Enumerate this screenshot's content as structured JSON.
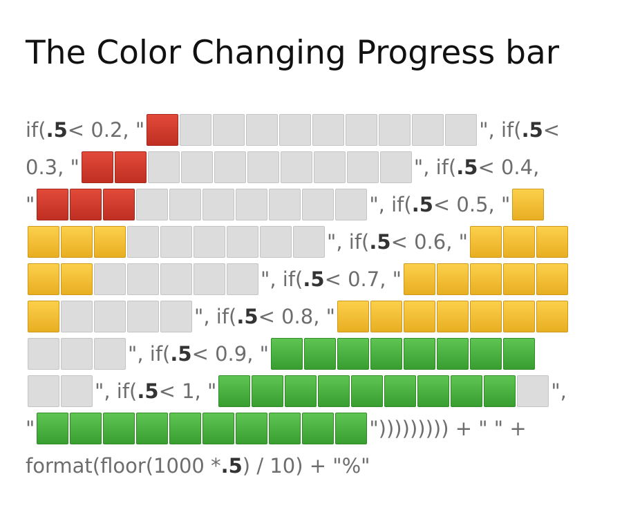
{
  "title": "The Color Changing Progress bar",
  "colors": {
    "red": "#cf3a2c",
    "yellow": "#f4c030",
    "green": "#49b03f",
    "gray": "#dcdcdc",
    "text": "#6d6d6d"
  },
  "lines": [
    [
      {
        "t": "text",
        "s": "if("
      },
      {
        "t": "bold",
        "s": ".5"
      },
      {
        "t": "text",
        "s": " < 0.2, \""
      },
      {
        "t": "bar",
        "c": [
          "red",
          1,
          "gray",
          9
        ]
      },
      {
        "t": "text",
        "s": "\", if("
      },
      {
        "t": "bold",
        "s": ".5"
      },
      {
        "t": "text",
        "s": " <"
      }
    ],
    [
      {
        "t": "text",
        "s": "0.3, \""
      },
      {
        "t": "bar",
        "c": [
          "red",
          2,
          "gray",
          8
        ]
      },
      {
        "t": "text",
        "s": "\", if("
      },
      {
        "t": "bold",
        "s": ".5"
      },
      {
        "t": "text",
        "s": " < 0.4,"
      }
    ],
    [
      {
        "t": "text",
        "s": "\""
      },
      {
        "t": "bar",
        "c": [
          "red",
          3,
          "gray",
          7
        ]
      },
      {
        "t": "text",
        "s": "\", if("
      },
      {
        "t": "bold",
        "s": ".5"
      },
      {
        "t": "text",
        "s": " < 0.5, \""
      },
      {
        "t": "bar",
        "c": [
          "yellow",
          1
        ]
      }
    ],
    [
      {
        "t": "bar",
        "c": [
          "yellow",
          3,
          "gray",
          6
        ]
      },
      {
        "t": "text",
        "s": "\", if("
      },
      {
        "t": "bold",
        "s": ".5"
      },
      {
        "t": "text",
        "s": " < 0.6, \""
      },
      {
        "t": "bar",
        "c": [
          "yellow",
          3
        ]
      }
    ],
    [
      {
        "t": "bar",
        "c": [
          "yellow",
          2,
          "gray",
          5
        ]
      },
      {
        "t": "text",
        "s": "\", if("
      },
      {
        "t": "bold",
        "s": ".5"
      },
      {
        "t": "text",
        "s": " < 0.7, \""
      },
      {
        "t": "bar",
        "c": [
          "yellow",
          5
        ]
      }
    ],
    [
      {
        "t": "bar",
        "c": [
          "yellow",
          1,
          "gray",
          4
        ]
      },
      {
        "t": "text",
        "s": "\", if("
      },
      {
        "t": "bold",
        "s": ".5"
      },
      {
        "t": "text",
        "s": " < 0.8, \""
      },
      {
        "t": "bar",
        "c": [
          "yellow",
          7
        ]
      }
    ],
    [
      {
        "t": "bar",
        "c": [
          "gray",
          3
        ]
      },
      {
        "t": "text",
        "s": "\", if("
      },
      {
        "t": "bold",
        "s": ".5"
      },
      {
        "t": "text",
        "s": " < 0.9, \""
      },
      {
        "t": "bar",
        "c": [
          "green",
          8
        ]
      }
    ],
    [
      {
        "t": "bar",
        "c": [
          "gray",
          2
        ]
      },
      {
        "t": "text",
        "s": "\", if("
      },
      {
        "t": "bold",
        "s": ".5"
      },
      {
        "t": "text",
        "s": " < 1, \""
      },
      {
        "t": "bar",
        "c": [
          "green",
          9,
          "gray",
          1
        ]
      },
      {
        "t": "text",
        "s": "\","
      }
    ],
    [
      {
        "t": "text",
        "s": "\""
      },
      {
        "t": "bar",
        "c": [
          "green",
          10
        ]
      },
      {
        "t": "text",
        "s": "\")))))))))  + \" \" +"
      }
    ],
    [
      {
        "t": "text",
        "s": "format(floor(1000 * "
      },
      {
        "t": "bold",
        "s": ".5"
      },
      {
        "t": "text",
        "s": ") / 10) + \"%\""
      }
    ]
  ]
}
